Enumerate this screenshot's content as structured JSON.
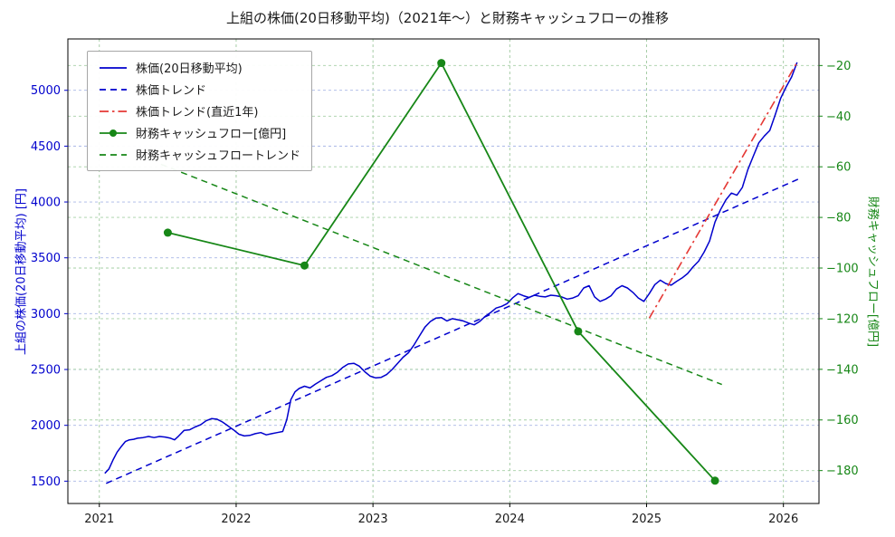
{
  "chart_data": {
    "type": "line",
    "title": "上組の株価(20日移動平均)（2021年〜）と財務キャッシュフローの推移",
    "xlabel": "",
    "x_range": [
      2020.77,
      2026.26
    ],
    "x_ticks": [
      2021,
      2022,
      2023,
      2024,
      2025,
      2026
    ],
    "x_tick_color": "#1a1a1a",
    "y_left": {
      "label": "上組の株価(20日移動平均) [円]",
      "color": "#0000cd",
      "range": [
        1300,
        5460
      ],
      "ticks": [
        1500,
        2000,
        2500,
        3000,
        3500,
        4000,
        4500,
        5000
      ]
    },
    "y_right": {
      "label": "財務キャッシュフロー[億円]",
      "color": "#178717",
      "range": [
        -193,
        -9.5
      ],
      "ticks": [
        -180,
        -160,
        -140,
        -120,
        -100,
        -80,
        -60,
        -40,
        -20
      ]
    },
    "grid": {
      "on": true,
      "dash": "3 3",
      "x_color": "#9ec89e",
      "left_color": "#a9b7e6",
      "right_color": "#a5cfa5"
    },
    "legend": {
      "position": "upper-left",
      "items": [
        {
          "label": "株価(20日移動平均)",
          "style": "solid",
          "color": "#0000cd"
        },
        {
          "label": "株価トレンド",
          "style": "dashed",
          "color": "#0000cd"
        },
        {
          "label": "株価トレンド(直近1年)",
          "style": "dashdot",
          "color": "#e53935"
        },
        {
          "label": "財務キャッシュフロー[億円]",
          "style": "solid",
          "marker": "circle",
          "color": "#178717"
        },
        {
          "label": "財務キャッシュフロートレンド",
          "style": "dashed",
          "color": "#178717"
        }
      ]
    },
    "series": [
      {
        "name": "株価(20日移動平均)",
        "slug": "stock-price-ma-line",
        "axis": "left",
        "style": "solid",
        "color": "#0000cd",
        "width": 1.5,
        "points": [
          [
            2021.04,
            1570
          ],
          [
            2021.07,
            1610
          ],
          [
            2021.1,
            1690
          ],
          [
            2021.13,
            1760
          ],
          [
            2021.16,
            1810
          ],
          [
            2021.19,
            1855
          ],
          [
            2021.22,
            1870
          ],
          [
            2021.25,
            1875
          ],
          [
            2021.28,
            1885
          ],
          [
            2021.32,
            1890
          ],
          [
            2021.36,
            1900
          ],
          [
            2021.4,
            1890
          ],
          [
            2021.44,
            1900
          ],
          [
            2021.48,
            1895
          ],
          [
            2021.52,
            1885
          ],
          [
            2021.55,
            1870
          ],
          [
            2021.58,
            1905
          ],
          [
            2021.62,
            1955
          ],
          [
            2021.66,
            1960
          ],
          [
            2021.7,
            1985
          ],
          [
            2021.74,
            2005
          ],
          [
            2021.78,
            2040
          ],
          [
            2021.82,
            2060
          ],
          [
            2021.86,
            2055
          ],
          [
            2021.9,
            2030
          ],
          [
            2021.94,
            1995
          ],
          [
            2021.98,
            1960
          ],
          [
            2022.02,
            1920
          ],
          [
            2022.06,
            1905
          ],
          [
            2022.1,
            1910
          ],
          [
            2022.14,
            1925
          ],
          [
            2022.18,
            1935
          ],
          [
            2022.22,
            1915
          ],
          [
            2022.26,
            1925
          ],
          [
            2022.3,
            1935
          ],
          [
            2022.34,
            1945
          ],
          [
            2022.37,
            2050
          ],
          [
            2022.4,
            2230
          ],
          [
            2022.43,
            2300
          ],
          [
            2022.46,
            2330
          ],
          [
            2022.5,
            2350
          ],
          [
            2022.54,
            2335
          ],
          [
            2022.58,
            2370
          ],
          [
            2022.62,
            2400
          ],
          [
            2022.66,
            2430
          ],
          [
            2022.7,
            2445
          ],
          [
            2022.74,
            2475
          ],
          [
            2022.78,
            2520
          ],
          [
            2022.82,
            2550
          ],
          [
            2022.86,
            2555
          ],
          [
            2022.9,
            2530
          ],
          [
            2022.94,
            2480
          ],
          [
            2022.98,
            2440
          ],
          [
            2023.02,
            2425
          ],
          [
            2023.06,
            2430
          ],
          [
            2023.1,
            2455
          ],
          [
            2023.14,
            2500
          ],
          [
            2023.18,
            2555
          ],
          [
            2023.22,
            2610
          ],
          [
            2023.26,
            2650
          ],
          [
            2023.3,
            2720
          ],
          [
            2023.34,
            2800
          ],
          [
            2023.38,
            2880
          ],
          [
            2023.42,
            2930
          ],
          [
            2023.46,
            2960
          ],
          [
            2023.5,
            2965
          ],
          [
            2023.54,
            2935
          ],
          [
            2023.58,
            2955
          ],
          [
            2023.62,
            2945
          ],
          [
            2023.66,
            2935
          ],
          [
            2023.7,
            2915
          ],
          [
            2023.74,
            2900
          ],
          [
            2023.78,
            2930
          ],
          [
            2023.82,
            2975
          ],
          [
            2023.86,
            3010
          ],
          [
            2023.9,
            3050
          ],
          [
            2023.94,
            3065
          ],
          [
            2023.98,
            3090
          ],
          [
            2024.02,
            3140
          ],
          [
            2024.06,
            3180
          ],
          [
            2024.1,
            3160
          ],
          [
            2024.14,
            3145
          ],
          [
            2024.18,
            3165
          ],
          [
            2024.22,
            3155
          ],
          [
            2024.26,
            3150
          ],
          [
            2024.3,
            3165
          ],
          [
            2024.34,
            3160
          ],
          [
            2024.38,
            3150
          ],
          [
            2024.42,
            3130
          ],
          [
            2024.46,
            3140
          ],
          [
            2024.5,
            3160
          ],
          [
            2024.54,
            3230
          ],
          [
            2024.58,
            3250
          ],
          [
            2024.62,
            3150
          ],
          [
            2024.66,
            3110
          ],
          [
            2024.7,
            3130
          ],
          [
            2024.74,
            3160
          ],
          [
            2024.78,
            3220
          ],
          [
            2024.82,
            3250
          ],
          [
            2024.86,
            3230
          ],
          [
            2024.9,
            3190
          ],
          [
            2024.94,
            3140
          ],
          [
            2024.98,
            3110
          ],
          [
            2025.02,
            3180
          ],
          [
            2025.06,
            3260
          ],
          [
            2025.1,
            3300
          ],
          [
            2025.14,
            3270
          ],
          [
            2025.18,
            3255
          ],
          [
            2025.22,
            3290
          ],
          [
            2025.26,
            3320
          ],
          [
            2025.3,
            3360
          ],
          [
            2025.34,
            3420
          ],
          [
            2025.38,
            3470
          ],
          [
            2025.42,
            3550
          ],
          [
            2025.46,
            3650
          ],
          [
            2025.5,
            3820
          ],
          [
            2025.54,
            3930
          ],
          [
            2025.58,
            4020
          ],
          [
            2025.62,
            4080
          ],
          [
            2025.66,
            4060
          ],
          [
            2025.7,
            4130
          ],
          [
            2025.74,
            4290
          ],
          [
            2025.78,
            4410
          ],
          [
            2025.82,
            4530
          ],
          [
            2025.86,
            4590
          ],
          [
            2025.9,
            4640
          ],
          [
            2025.94,
            4780
          ],
          [
            2025.98,
            4930
          ],
          [
            2026.02,
            5030
          ],
          [
            2026.06,
            5120
          ],
          [
            2026.1,
            5250
          ]
        ]
      },
      {
        "name": "株価トレンド",
        "slug": "stock-trend-line",
        "axis": "left",
        "style": "dashed",
        "color": "#0000cd",
        "width": 1.5,
        "points": [
          [
            2021.05,
            1480
          ],
          [
            2026.12,
            4210
          ]
        ]
      },
      {
        "name": "株価トレンド(直近1年)",
        "slug": "stock-trend-recent-line",
        "axis": "left",
        "style": "dashdot",
        "color": "#e53935",
        "width": 1.6,
        "points": [
          [
            2025.02,
            2960
          ],
          [
            2026.1,
            5250
          ]
        ]
      },
      {
        "name": "財務キャッシュフロー[億円]",
        "slug": "cashflow-line",
        "axis": "right",
        "style": "solid",
        "marker": "circle",
        "color": "#178717",
        "width": 1.8,
        "points": [
          [
            2021.5,
            -86
          ],
          [
            2022.5,
            -99
          ],
          [
            2023.5,
            -19
          ],
          [
            2024.5,
            -125
          ],
          [
            2025.5,
            -184
          ]
        ]
      },
      {
        "name": "財務キャッシュフロートレンド",
        "slug": "cashflow-trend-line",
        "axis": "right",
        "style": "dashed",
        "color": "#178717",
        "width": 1.5,
        "points": [
          [
            2021.45,
            -59
          ],
          [
            2025.55,
            -146
          ]
        ]
      }
    ]
  }
}
